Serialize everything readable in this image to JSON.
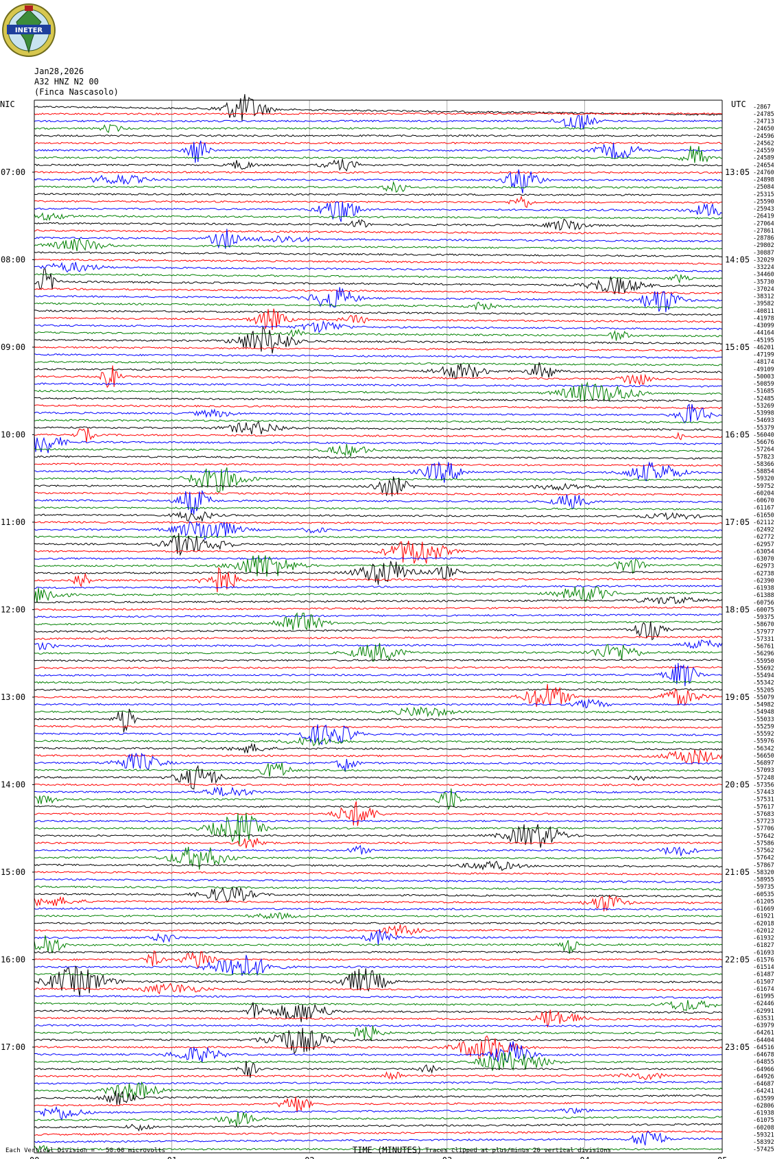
{
  "header": {
    "logo_text": "INETER",
    "date": "Jan28,2026",
    "station": "A32 HNZ N2 00",
    "location": "(Finca Nascasolo)"
  },
  "timezones": {
    "left": "NIC",
    "right": "UTC"
  },
  "footer": {
    "scale_note": "Each Vertical Division =   50.00 microvolts",
    "clip_note": "Traces clipped at plus/minus 20 vertical divisions"
  },
  "chart_data": {
    "type": "line",
    "xlabel": "TIME (MINUTES)",
    "x_ticks": [
      "00",
      "01",
      "02",
      "03",
      "04",
      "05"
    ],
    "xlim": [
      0,
      5
    ],
    "left_hour_labels": [
      "07:00",
      "08:00",
      "09:00",
      "10:00",
      "11:00",
      "12:00",
      "13:00",
      "14:00",
      "15:00",
      "16:00",
      "17:00"
    ],
    "right_hour_labels": [
      "13:05",
      "14:05",
      "15:05",
      "16:05",
      "17:05",
      "18:05",
      "19:05",
      "20:05",
      "21:05",
      "22:05",
      "23:05"
    ],
    "trace_colors": [
      "#000000",
      "#ff0000",
      "#0000ff",
      "#008000"
    ],
    "trace_offsets": [
      -2867,
      -24785,
      -24713,
      -24650,
      -24596,
      -24562,
      -24559,
      -24589,
      -24654,
      -24760,
      -24898,
      -25084,
      -25315,
      -25590,
      -25943,
      -26419,
      -27064,
      -27861,
      -28786,
      -29802,
      -30887,
      -32029,
      -33224,
      -34460,
      -35730,
      -37024,
      -38312,
      -39582,
      -40811,
      -41978,
      -43099,
      -44164,
      -45195,
      -46201,
      -47199,
      -48174,
      -49109,
      -50003,
      -50859,
      -51685,
      -52485,
      -53269,
      -53998,
      -54693,
      -55379,
      -56040,
      -56676,
      -57264,
      -57823,
      -58366,
      -58854,
      -59320,
      -59752,
      -60204,
      -60670,
      -61167,
      -61650,
      -62112,
      -62492,
      -62772,
      -62957,
      -63054,
      -63070,
      -62973,
      -62738,
      -62390,
      -61938,
      -61388,
      -60756,
      -60075,
      -59375,
      -58670,
      -57977,
      -57331,
      -56761,
      -56296,
      -55950,
      -55692,
      -55494,
      -55342,
      -55205,
      -55079,
      -54982,
      -54948,
      -55033,
      -55259,
      -55592,
      -55976,
      -56342,
      -56650,
      -56897,
      -57093,
      -57248,
      -57356,
      -57443,
      -57531,
      -57617,
      -57683,
      -57723,
      -57706,
      -57642,
      -57586,
      -57562,
      -57642,
      -57867,
      -58320,
      -58955,
      -59735,
      -60535,
      -61205,
      -61669,
      -61921,
      -62018,
      -62012,
      -61932,
      -61827,
      -61693,
      -61576,
      -61514,
      -61487,
      -61507,
      -61674,
      -61995,
      -62446,
      -62991,
      -63531,
      -63979,
      -64261,
      -64404,
      -64516,
      -64678,
      -64855,
      -64966,
      -64926,
      -64687,
      -64241,
      -63599,
      -62806,
      -61938,
      -61075,
      -60208,
      -59321,
      -58392,
      -57425
    ]
  }
}
